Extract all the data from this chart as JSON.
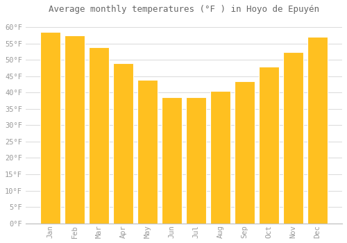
{
  "months": [
    "Jan",
    "Feb",
    "Mar",
    "Apr",
    "May",
    "Jun",
    "Jul",
    "Aug",
    "Sep",
    "Oct",
    "Nov",
    "Dec"
  ],
  "values": [
    58.5,
    57.5,
    54.0,
    49.0,
    44.0,
    38.5,
    38.5,
    40.5,
    43.5,
    48.0,
    52.5,
    57.0
  ],
  "bar_color": "#FFC020",
  "bar_edge_color": "#FFFFFF",
  "title": "Average monthly temperatures (°F ) in Hoyo de Epuyén",
  "title_fontsize": 9,
  "ylim": [
    0,
    63
  ],
  "yticks": [
    0,
    5,
    10,
    15,
    20,
    25,
    30,
    35,
    40,
    45,
    50,
    55,
    60
  ],
  "ytick_labels": [
    "0°F",
    "5°F",
    "10°F",
    "15°F",
    "20°F",
    "25°F",
    "30°F",
    "35°F",
    "40°F",
    "45°F",
    "50°F",
    "55°F",
    "60°F"
  ],
  "background_color": "#ffffff",
  "grid_color": "#dddddd",
  "tick_label_color": "#999999",
  "title_color": "#666666",
  "bar_width": 0.85
}
